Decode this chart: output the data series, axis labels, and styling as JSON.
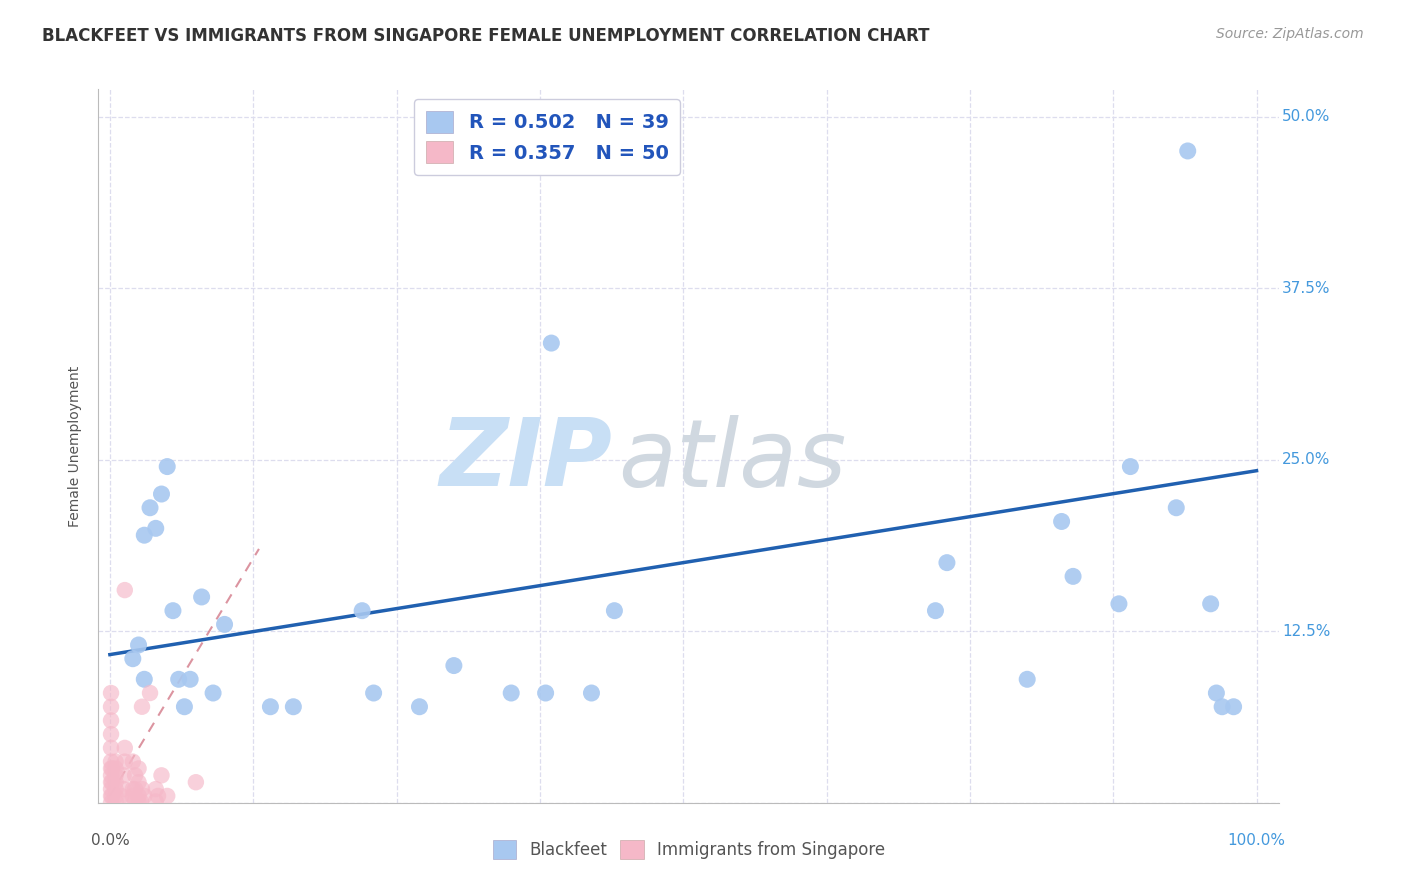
{
  "title": "BLACKFEET VS IMMIGRANTS FROM SINGAPORE FEMALE UNEMPLOYMENT CORRELATION CHART",
  "source": "Source: ZipAtlas.com",
  "ylabel": "Female Unemployment",
  "legend_blue_r": "0.502",
  "legend_blue_n": "39",
  "legend_pink_r": "0.357",
  "legend_pink_n": "50",
  "xlim": [
    -0.01,
    1.02
  ],
  "ylim": [
    0.0,
    0.52
  ],
  "xtick_positions": [
    0.0,
    0.125,
    0.25,
    0.375,
    0.5,
    0.625,
    0.75,
    0.875,
    1.0
  ],
  "ytick_positions": [
    0.0,
    0.125,
    0.25,
    0.375,
    0.5
  ],
  "ytick_labels": [
    "",
    "12.5%",
    "25.0%",
    "37.5%",
    "50.0%"
  ],
  "blue_scatter_x": [
    0.02,
    0.025,
    0.03,
    0.035,
    0.03,
    0.04,
    0.045,
    0.05,
    0.055,
    0.06,
    0.065,
    0.07,
    0.08,
    0.09,
    0.1,
    0.14,
    0.16,
    0.22,
    0.23,
    0.27,
    0.3,
    0.35,
    0.38,
    0.385,
    0.42,
    0.44,
    0.72,
    0.73,
    0.8,
    0.83,
    0.84,
    0.88,
    0.89,
    0.93,
    0.94,
    0.96,
    0.965,
    0.97,
    0.98
  ],
  "blue_scatter_y": [
    0.105,
    0.115,
    0.195,
    0.215,
    0.09,
    0.2,
    0.225,
    0.245,
    0.14,
    0.09,
    0.07,
    0.09,
    0.15,
    0.08,
    0.13,
    0.07,
    0.07,
    0.14,
    0.08,
    0.07,
    0.1,
    0.08,
    0.08,
    0.335,
    0.08,
    0.14,
    0.14,
    0.175,
    0.09,
    0.205,
    0.165,
    0.145,
    0.245,
    0.215,
    0.475,
    0.145,
    0.08,
    0.07,
    0.07
  ],
  "pink_scatter_x": [
    0.001,
    0.001,
    0.001,
    0.001,
    0.001,
    0.001,
    0.001,
    0.001,
    0.001,
    0.001,
    0.001,
    0.001,
    0.002,
    0.002,
    0.002,
    0.005,
    0.005,
    0.005,
    0.005,
    0.005,
    0.005,
    0.005,
    0.01,
    0.012,
    0.012,
    0.013,
    0.013,
    0.013,
    0.018,
    0.02,
    0.02,
    0.02,
    0.022,
    0.022,
    0.022,
    0.025,
    0.025,
    0.025,
    0.025,
    0.027,
    0.028,
    0.028,
    0.03,
    0.035,
    0.04,
    0.04,
    0.042,
    0.045,
    0.05,
    0.075
  ],
  "pink_scatter_y": [
    0.0,
    0.005,
    0.01,
    0.015,
    0.02,
    0.025,
    0.03,
    0.04,
    0.05,
    0.06,
    0.07,
    0.08,
    0.005,
    0.015,
    0.025,
    0.001,
    0.005,
    0.01,
    0.015,
    0.02,
    0.025,
    0.03,
    0.005,
    0.01,
    0.02,
    0.03,
    0.04,
    0.155,
    0.001,
    0.005,
    0.01,
    0.03,
    0.001,
    0.01,
    0.02,
    0.001,
    0.005,
    0.015,
    0.025,
    0.001,
    0.01,
    0.07,
    0.005,
    0.08,
    0.001,
    0.01,
    0.005,
    0.02,
    0.005,
    0.015
  ],
  "blue_line_x": [
    0.0,
    1.0
  ],
  "blue_line_y": [
    0.108,
    0.242
  ],
  "pink_line_x": [
    0.0,
    0.13
  ],
  "pink_line_y": [
    0.005,
    0.185
  ],
  "blue_scatter_color": "#a8c8f0",
  "pink_scatter_color": "#f5b8c8",
  "blue_line_color": "#2060b0",
  "pink_line_color": "#d07080",
  "grid_color": "#ddddee",
  "background_color": "#ffffff",
  "title_fontsize": 12,
  "axis_label_fontsize": 10,
  "tick_fontsize": 11,
  "legend_fontsize": 14,
  "source_fontsize": 10,
  "watermark_zip_color": "#c8dff5",
  "watermark_atlas_color": "#d0d8e0"
}
